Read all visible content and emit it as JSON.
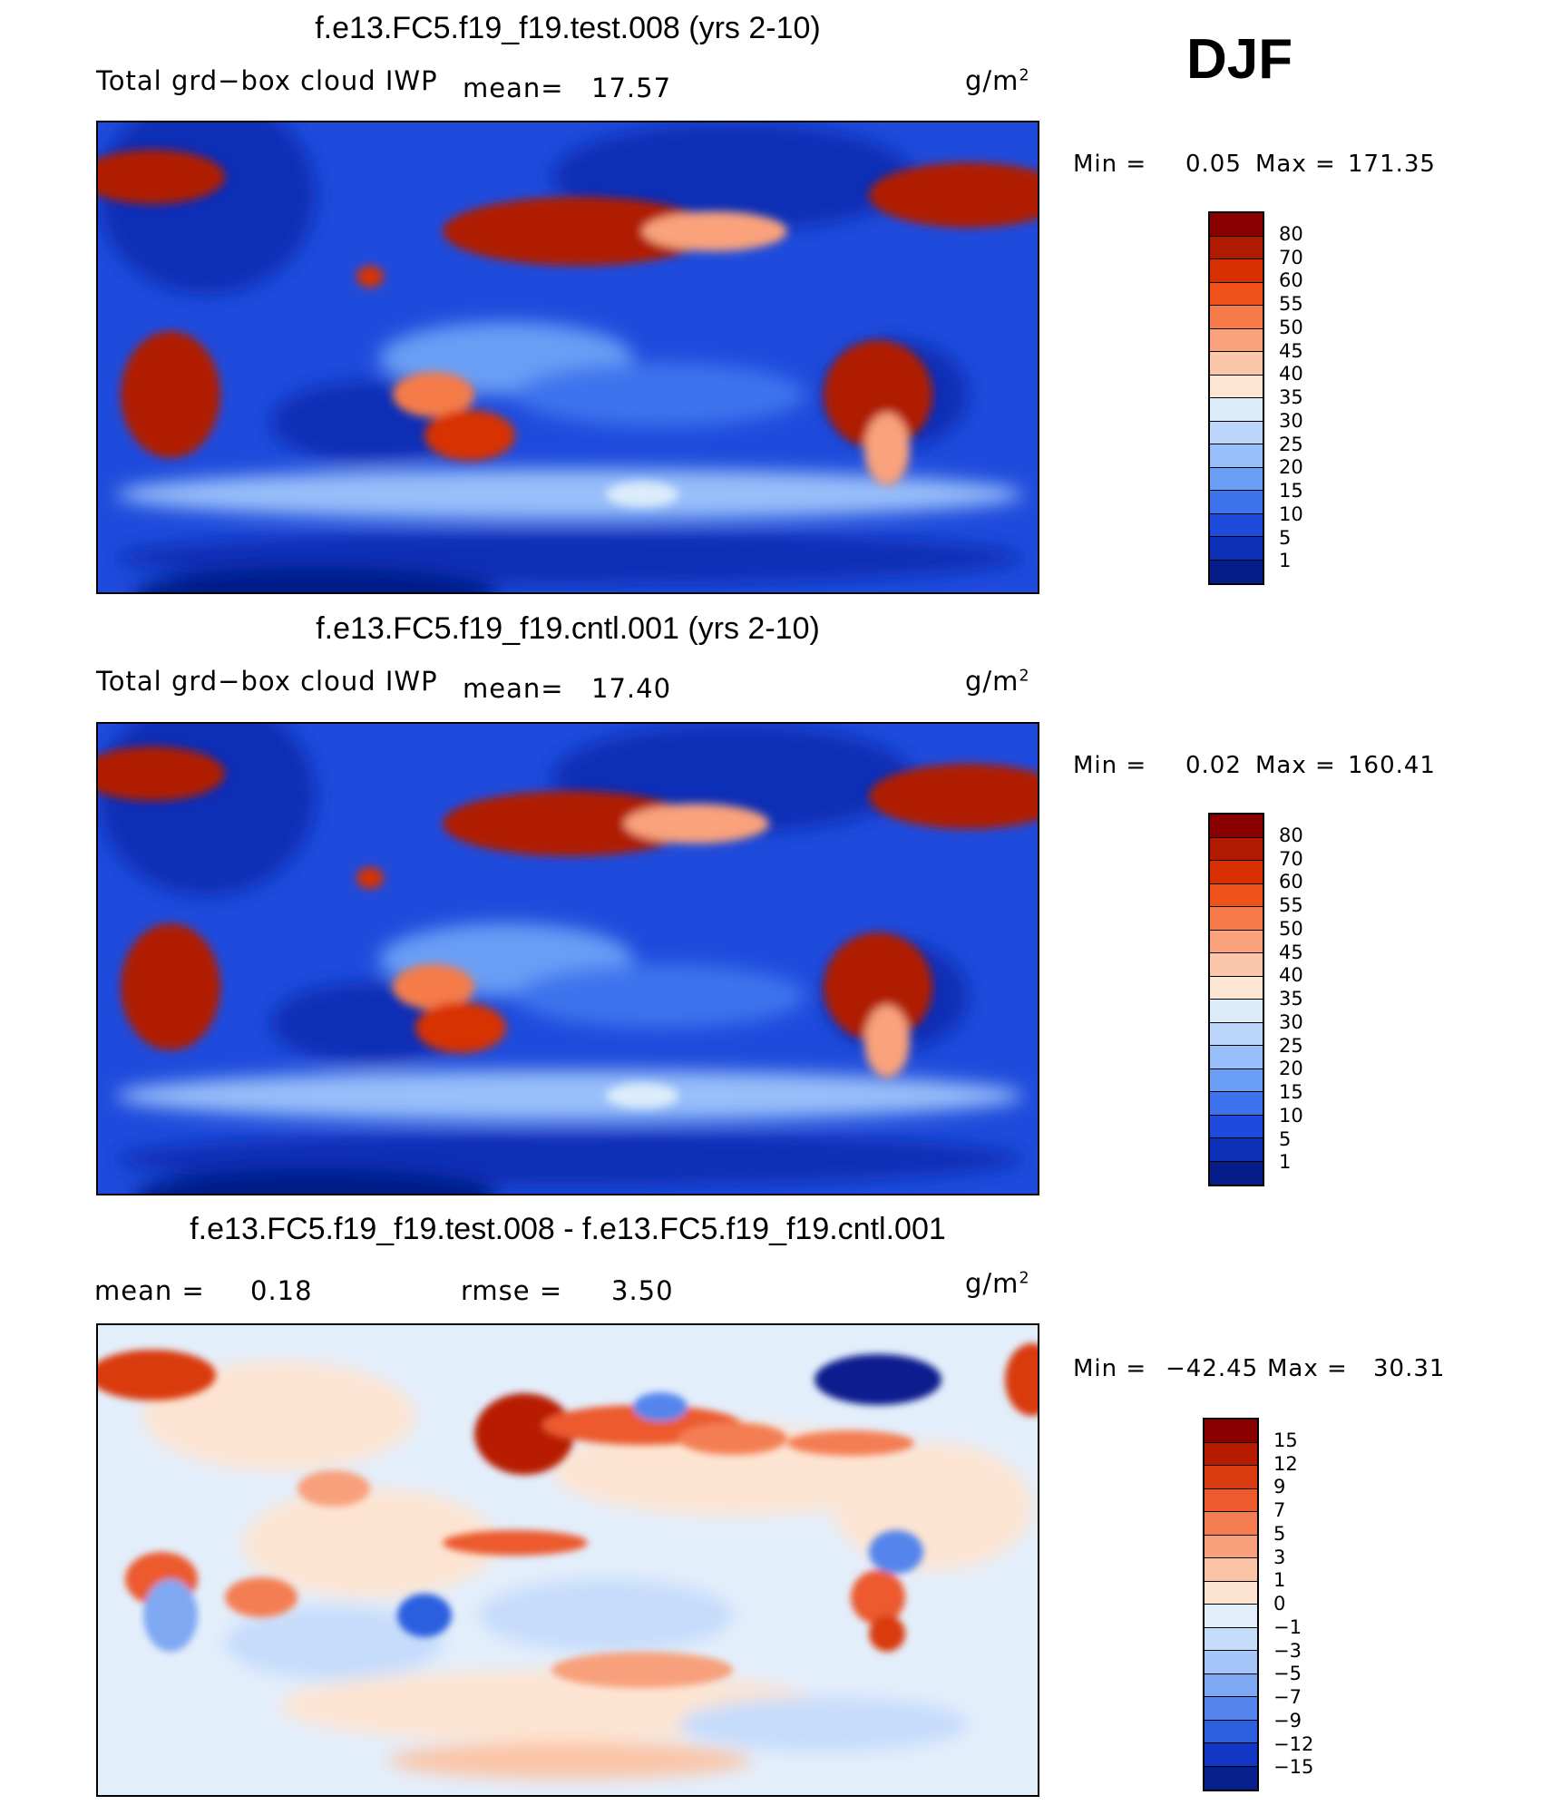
{
  "season": "DJF",
  "panels": [
    {
      "title": "f.e13.FC5.f19_f19.test.008 (yrs 2-10)",
      "left_label": "Total grd−box cloud IWP",
      "mean_label": "mean=",
      "mean_value": "17.57",
      "units": "g/m",
      "units_exp": "2",
      "min_label": "Min =",
      "min_value": "0.05",
      "max_label": "Max =",
      "max_value": "171.35",
      "colorbar": {
        "labels": [
          "80",
          "70",
          "60",
          "55",
          "50",
          "45",
          "40",
          "35",
          "30",
          "25",
          "20",
          "15",
          "10",
          "5",
          "1"
        ],
        "colors": [
          "#8a0000",
          "#b01a00",
          "#d83000",
          "#f0521c",
          "#f57c4a",
          "#f9a27b",
          "#fbc6a9",
          "#fde6d4",
          "#dcecfa",
          "#bcd7fb",
          "#98bff9",
          "#6b9ef5",
          "#3e73ee",
          "#1f4bdc",
          "#0b2fb6",
          "#061c88"
        ]
      }
    },
    {
      "title": "f.e13.FC5.f19_f19.cntl.001 (yrs 2-10)",
      "left_label": "Total grd−box cloud IWP",
      "mean_label": "mean=",
      "mean_value": "17.40",
      "units": "g/m",
      "units_exp": "2",
      "min_label": "Min =",
      "min_value": "0.02",
      "max_label": "Max =",
      "max_value": "160.41",
      "colorbar": {
        "labels": [
          "80",
          "70",
          "60",
          "55",
          "50",
          "45",
          "40",
          "35",
          "30",
          "25",
          "20",
          "15",
          "10",
          "5",
          "1"
        ],
        "colors": [
          "#8a0000",
          "#b01a00",
          "#d83000",
          "#f0521c",
          "#f57c4a",
          "#f9a27b",
          "#fbc6a9",
          "#fde6d4",
          "#dcecfa",
          "#bcd7fb",
          "#98bff9",
          "#6b9ef5",
          "#3e73ee",
          "#1f4bdc",
          "#0b2fb6",
          "#061c88"
        ]
      }
    },
    {
      "title": "f.e13.FC5.f19_f19.test.008 - f.e13.FC5.f19_f19.cntl.001",
      "mean_label": "mean =",
      "mean_value": "0.18",
      "rmse_label": "rmse =",
      "rmse_value": "3.50",
      "units": "g/m",
      "units_exp": "2",
      "min_label": "Min =",
      "min_value": "−42.45",
      "max_label": "Max =",
      "max_value": "30.31",
      "colorbar": {
        "labels": [
          "15",
          "12",
          "9",
          "7",
          "5",
          "3",
          "1",
          "0",
          "−1",
          "−3",
          "−5",
          "−7",
          "−9",
          "−12",
          "−15"
        ],
        "colors": [
          "#8a0000",
          "#b81c00",
          "#d93a10",
          "#ec5a2e",
          "#f47e52",
          "#f8a07c",
          "#fbc4a6",
          "#fde4d2",
          "#e3eefb",
          "#c6dcfb",
          "#a5c5f8",
          "#7fa8f3",
          "#5585ec",
          "#2c5fe0",
          "#1237c4",
          "#081f8e"
        ]
      }
    }
  ]
}
